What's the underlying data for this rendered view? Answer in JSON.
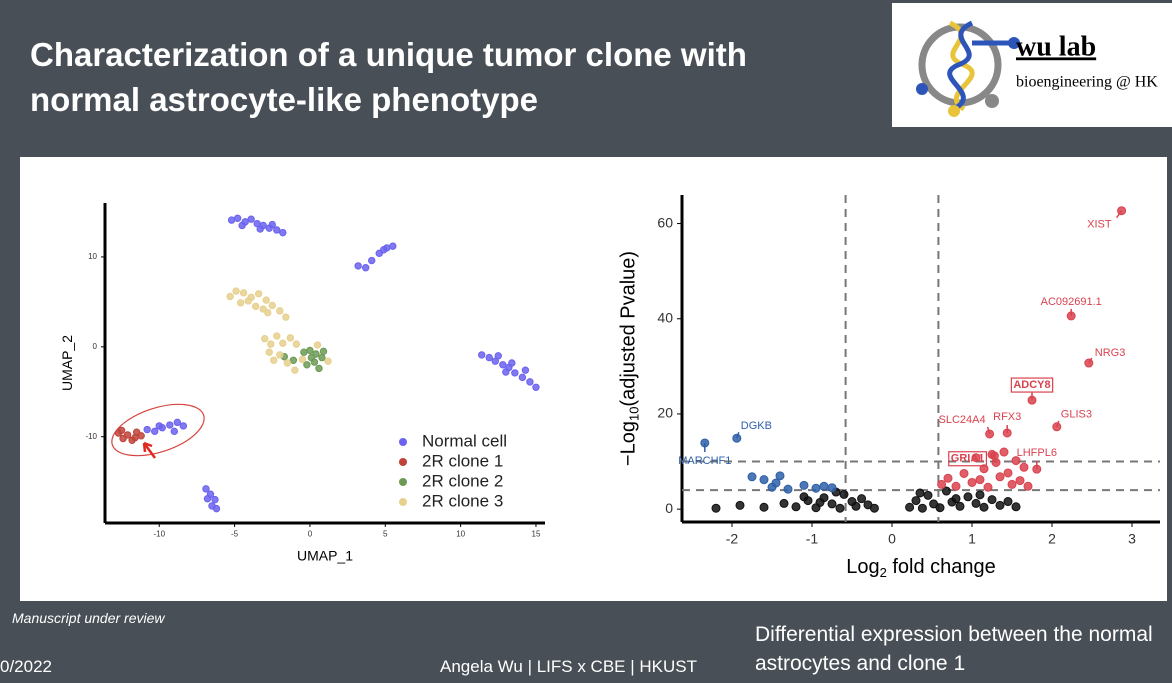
{
  "title": "Characterization of a unique tumor clone with normal astrocyte-like phenotype",
  "logo": {
    "name": "wu lab",
    "tagline": "bioengineering @ HK"
  },
  "note": "Manuscript under review",
  "footer": {
    "date": "0/2022",
    "author": "Angela Wu | LIFS x CBE | HKUST"
  },
  "caption": "Differential expression between the normal astrocytes and clone 1",
  "chart_data": [
    {
      "type": "scatter",
      "x_label": "UMAP_1",
      "y_label": "UMAP_2",
      "xlim": [
        -13.6,
        15.6
      ],
      "ylim": [
        -19.6,
        16
      ],
      "xticks": [
        -10,
        -5,
        0,
        5,
        10,
        15
      ],
      "yticks": [
        -10,
        0,
        10
      ],
      "legend": "lower-right",
      "series": [
        {
          "name": "Normal cell",
          "color": "#6b62ee",
          "x": [
            -5.2,
            -4.8,
            -4.3,
            -3.9,
            -3.5,
            -3.1,
            -2.7,
            -2.2,
            -1.8,
            -4.5,
            -3.3,
            -2.5,
            3.2,
            3.7,
            4.1,
            4.6,
            5.1,
            5.5,
            4.9,
            11.4,
            11.9,
            12.3,
            12.8,
            13.2,
            13.6,
            14.1,
            14.6,
            15.0,
            12.5,
            13.4,
            14.3,
            13.0,
            -6.9,
            -6.6,
            -6.3,
            -6.5,
            -6.2,
            -6.8,
            -10.8,
            -10.3,
            -9.8,
            -9.3,
            -8.8,
            -8.4,
            -9.0,
            -10.0
          ],
          "values": [
            14.1,
            14.3,
            13.9,
            14.2,
            13.7,
            13.5,
            13.2,
            13.0,
            12.7,
            13.5,
            13.1,
            13.6,
            9.0,
            8.8,
            9.6,
            10.4,
            11.0,
            11.2,
            10.8,
            -0.9,
            -1.2,
            -1.6,
            -2.0,
            -2.3,
            -2.9,
            -3.4,
            -3.9,
            -4.5,
            -1.0,
            -1.8,
            -2.6,
            -2.8,
            -15.8,
            -16.4,
            -17.0,
            -17.7,
            -18.0,
            -16.9,
            -9.2,
            -9.4,
            -9.0,
            -8.7,
            -8.4,
            -8.8,
            -9.4,
            -8.8
          ]
        },
        {
          "name": "2R clone 1",
          "color": "#bf4339",
          "x": [
            -12.7,
            -12.4,
            -12.1,
            -11.8,
            -11.5,
            -11.2,
            -12.5,
            -11.6
          ],
          "values": [
            -9.6,
            -10.2,
            -9.8,
            -10.4,
            -9.5,
            -9.9,
            -9.3,
            -10.1
          ]
        },
        {
          "name": "2R clone 2",
          "color": "#6c9a55",
          "x": [
            -1.7,
            -1.1,
            -0.4,
            0,
            0.4,
            0.8,
            0.3,
            -0.2,
            0.6,
            0.1,
            0.9
          ],
          "values": [
            -1.1,
            -1.5,
            -0.6,
            -0.4,
            -0.8,
            -1.2,
            -1.7,
            -2.0,
            -2.4,
            -1.2,
            -0.5
          ]
        },
        {
          "name": "2R clone 3",
          "color": "#e6d08e",
          "x": [
            -5.3,
            -4.9,
            -4.4,
            -3.9,
            -3.4,
            -2.9,
            -2.5,
            -2.0,
            -1.6,
            -4.6,
            -3.6,
            -2.8,
            -4.1,
            -3.1,
            -3.0,
            -2.6,
            -2.2,
            -1.8,
            -1.3,
            -2.7,
            -2.0,
            -1.5,
            -1.0,
            -0.5,
            0.5,
            1.2,
            -0.9,
            -2.4
          ],
          "values": [
            5.6,
            6.2,
            6.0,
            5.5,
            5.9,
            5.2,
            4.6,
            4.0,
            3.3,
            4.9,
            4.5,
            3.8,
            5.1,
            4.2,
            0.9,
            0.3,
            1.2,
            0.4,
            1.0,
            -0.6,
            -0.9,
            -1.8,
            -2.6,
            -1.4,
            0.2,
            -1.6,
            0.3,
            -1.5
          ]
        }
      ]
    },
    {
      "type": "scatter",
      "x_label": {
        "prefix": "Log",
        "sub": "2",
        "suffix": " fold change"
      },
      "y_label": {
        "prefix": "−Log",
        "sub": "10",
        "suffix": "(adjusted Pvalue)"
      },
      "xlim": [
        -2.625,
        3.35
      ],
      "ylim": [
        -2.7,
        66
      ],
      "xticks": [
        -2,
        -1,
        0,
        1,
        2,
        3
      ],
      "yticks": [
        0,
        20,
        40,
        60
      ],
      "vlines": [
        -0.58,
        0.58
      ],
      "hlines": [
        4,
        10
      ],
      "series": [
        {
          "color": "#111111",
          "x": [
            -1.35,
            -1.2,
            -1.05,
            -0.95,
            -0.85,
            -0.75,
            -0.65,
            -0.6,
            -0.5,
            -0.45,
            -0.38,
            -0.3,
            -0.22,
            -1.1,
            -0.9,
            -0.7,
            -1.6,
            -1.9,
            -2.2,
            0.22,
            0.3,
            0.38,
            0.45,
            0.52,
            0.6,
            0.68,
            0.75,
            0.85,
            0.95,
            1.05,
            1.15,
            1.25,
            1.35,
            1.45,
            0.35,
            0.8,
            1.1,
            1.55
          ],
          "values": [
            1.2,
            0.5,
            1.8,
            0.3,
            2.4,
            1.1,
            0.2,
            3.1,
            1.6,
            0.6,
            2.2,
            0.9,
            0.2,
            2.6,
            1.4,
            3.6,
            0.4,
            0.8,
            0.2,
            0.4,
            1.8,
            0.2,
            2.9,
            1.1,
            0.3,
            3.8,
            1.5,
            0.6,
            2.6,
            1.2,
            0.4,
            2.0,
            0.8,
            1.6,
            3.4,
            2.2,
            3.0,
            0.5
          ]
        },
        {
          "color": "#2e5fa8",
          "x": [
            -1.75,
            -1.6,
            -1.5,
            -1.45,
            -1.3,
            -1.1,
            -0.95,
            -0.85,
            -0.75,
            -1.4
          ],
          "values": [
            6.8,
            6.2,
            4.6,
            5.5,
            4.2,
            5.0,
            4.4,
            4.8,
            4.5,
            7.0
          ]
        },
        {
          "color": "#d9424e",
          "x": [
            0.62,
            0.7,
            0.8,
            0.9,
            1.0,
            1.05,
            1.1,
            1.15,
            1.2,
            1.3,
            1.35,
            1.45,
            1.5,
            1.55,
            1.6,
            1.7,
            1.65,
            1.4,
            1.25
          ],
          "values": [
            5.2,
            6.5,
            4.8,
            7.5,
            5.6,
            10.8,
            6.2,
            8.5,
            4.6,
            9.8,
            6.8,
            7.6,
            5.2,
            10.2,
            6.0,
            4.8,
            8.8,
            12.0,
            11.5
          ]
        },
        {
          "color": "#d9424e",
          "x": [
            2.87,
            2.24,
            2.46,
            1.75,
            2.06,
            1.44,
            1.22,
            1.28,
            1.81
          ],
          "values": [
            62.7,
            40.6,
            30.7,
            22.9,
            17.3,
            16.0,
            15.8,
            11.2,
            8.4
          ],
          "labels": [
            "XIST",
            "AC092691.1",
            "NRG3",
            "ADCY8",
            "GLIS3",
            "RFX3",
            "SLC24A4",
            "GRIA1",
            "LHFPL6"
          ],
          "boxed": [
            false,
            false,
            false,
            true,
            false,
            false,
            false,
            true,
            false
          ]
        },
        {
          "color": "#2e5fa8",
          "x": [
            -1.94,
            -2.34
          ],
          "values": [
            14.9,
            13.9
          ],
          "labels": [
            "DGKB",
            "MARCHF1"
          ],
          "boxed": [
            false,
            false
          ]
        }
      ]
    }
  ]
}
